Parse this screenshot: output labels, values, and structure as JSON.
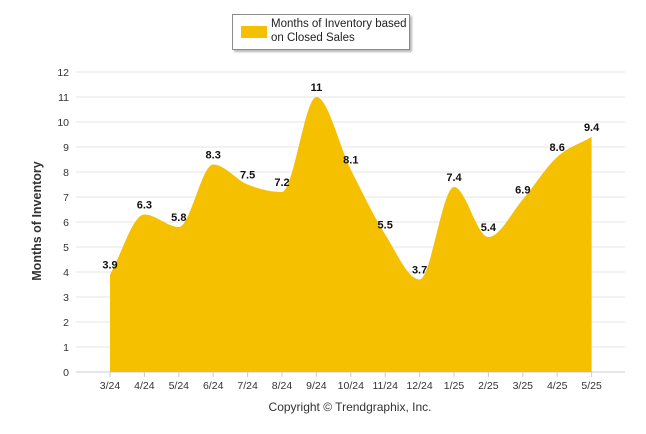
{
  "chart_data": {
    "type": "area",
    "categories": [
      "3/24",
      "4/24",
      "5/24",
      "6/24",
      "7/24",
      "8/24",
      "9/24",
      "10/24",
      "11/24",
      "12/24",
      "1/25",
      "2/25",
      "3/25",
      "4/25",
      "5/25"
    ],
    "series": [
      {
        "name": "Months of Inventory based on Closed Sales",
        "values": [
          3.9,
          6.3,
          5.8,
          8.3,
          7.5,
          7.2,
          11,
          8.1,
          5.5,
          3.7,
          7.4,
          5.4,
          6.9,
          8.6,
          9.4
        ],
        "color": "#f5c000"
      }
    ],
    "data_labels": [
      "3.9",
      "6.3",
      "5.8",
      "8.3",
      "7.5",
      "7.2",
      "11",
      "8.1",
      "5.5",
      "3.7",
      "7.4",
      "5.4",
      "6.9",
      "8.6",
      "9.4"
    ],
    "yticks": [
      "0",
      "1",
      "2",
      "3",
      "4",
      "5",
      "6",
      "7",
      "8",
      "9",
      "10",
      "11",
      "12"
    ],
    "ylim": [
      0,
      12
    ],
    "xlabel": "",
    "ylabel": "Months of Inventory",
    "grid": true,
    "legend": "top-center"
  },
  "legend": {
    "label": "Months of Inventory based\non Closed Sales",
    "swatch_color": "#f5c000"
  },
  "credit": "Copyright © Trendgraphix, Inc.",
  "colors": {
    "grid": "#e6e6e6",
    "axis": "#cccccc",
    "text": "#333333"
  }
}
